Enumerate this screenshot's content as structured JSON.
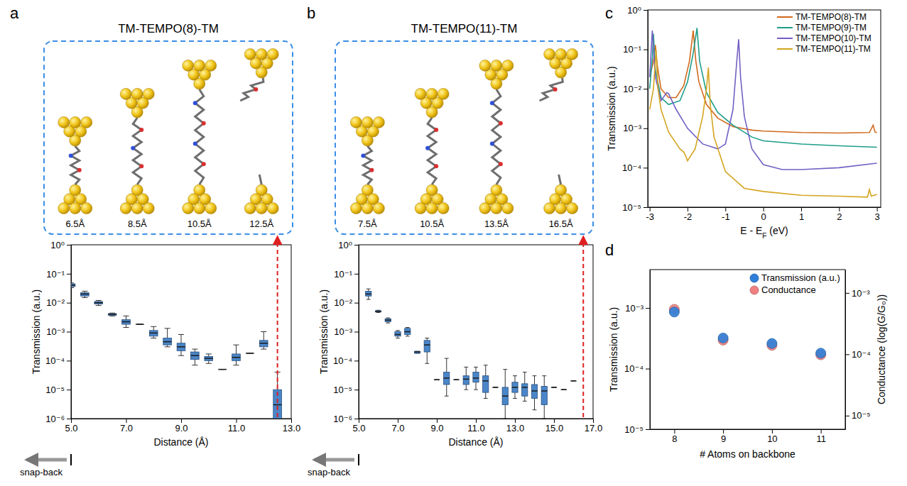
{
  "chart_data": [
    {
      "panel": "a",
      "type": "box",
      "title": "TM-TEMPO(8)-TM",
      "structure_labels": [
        "6.5Å",
        "8.5Å",
        "10.5Å",
        "12.5Å"
      ],
      "x_label": "Distance (Å)",
      "y_label": "Transmission (a.u.)",
      "log": "y",
      "color": "#4a86c8",
      "x": [
        5,
        5.5,
        6,
        6.5,
        7,
        7.5,
        8,
        8.5,
        9,
        9.5,
        10,
        10.5,
        11,
        11.5,
        12,
        12.5
      ],
      "whisker_low": [
        0.033,
        0.015,
        0.008,
        0.0035,
        0.0014,
        0.0018,
        0.0006,
        0.0003,
        0.00015,
        7e-05,
        8e-05,
        5e-05,
        7e-05,
        0.00018,
        0.00025,
        1e-06
      ],
      "q1": [
        0.036,
        0.017,
        0.009,
        0.0037,
        0.0018,
        0.0018,
        0.0007,
        0.00035,
        0.00022,
        0.00011,
        0.0001,
        5e-05,
        0.0001,
        0.00018,
        0.0003,
        1e-06
      ],
      "median": [
        0.04,
        0.02,
        0.01,
        0.004,
        0.0022,
        0.0018,
        0.0009,
        0.00045,
        0.0003,
        0.00015,
        0.00012,
        5e-05,
        0.00013,
        0.00018,
        0.0004,
        3e-06
      ],
      "q3": [
        0.045,
        0.022,
        0.011,
        0.0042,
        0.0026,
        0.0018,
        0.0011,
        0.0006,
        0.0004,
        0.0002,
        0.00014,
        5e-05,
        0.00017,
        0.00018,
        0.0005,
        1e-05
      ],
      "whisker_high": [
        0.048,
        0.025,
        0.012,
        0.0044,
        0.0035,
        0.0018,
        0.0015,
        0.0013,
        0.0008,
        0.00025,
        0.00017,
        5e-05,
        0.00035,
        0.00018,
        0.001,
        4e-05
      ],
      "rupture_x": 12.5,
      "annotation": "snap-back",
      "xlim": [
        5,
        13
      ],
      "xticks": [
        {
          "value": 5,
          "label": "5.0"
        },
        {
          "value": 7,
          "label": "7.0"
        },
        {
          "value": 9,
          "label": "9.0"
        },
        {
          "value": 11,
          "label": "11.0"
        },
        {
          "value": 13,
          "label": "13.0"
        }
      ],
      "ylim": [
        1e-06,
        1
      ],
      "yticks": [
        {
          "value": 1e-06,
          "label": "10⁻⁶"
        },
        {
          "value": 1e-05,
          "label": "10⁻⁵"
        },
        {
          "value": 0.0001,
          "label": "10⁻⁴"
        },
        {
          "value": 0.001,
          "label": "10⁻³"
        },
        {
          "value": 0.01,
          "label": "10⁻²"
        },
        {
          "value": 0.1,
          "label": "10⁻¹"
        },
        {
          "value": 1,
          "label": "10⁰"
        }
      ]
    },
    {
      "panel": "b",
      "type": "box",
      "title": "TM-TEMPO(11)-TM",
      "structure_labels": [
        "7.5Å",
        "10.5Å",
        "13.5Å",
        "16.5Å"
      ],
      "x_label": "Distance (Å)",
      "y_label": "Transmission (a.u.)",
      "log": "y",
      "color": "#4a86c8",
      "x": [
        5.5,
        6,
        6.5,
        7,
        7.5,
        8,
        8.5,
        9,
        9.5,
        10,
        10.5,
        11,
        11.5,
        12,
        12.5,
        13,
        13.5,
        14,
        14.5,
        15,
        15.5,
        16
      ],
      "whisker_low": [
        0.013,
        0.0046,
        0.002,
        0.0006,
        0.0007,
        0.00018,
        8e-05,
        2.2e-05,
        6e-06,
        2.2e-05,
        1e-05,
        1e-05,
        5e-06,
        1.2e-05,
        1e-06,
        5e-06,
        4e-06,
        2e-06,
        1e-06,
        1.2e-05,
        1e-05,
        2e-05
      ],
      "q1": [
        0.017,
        0.0048,
        0.0022,
        0.0007,
        0.0008,
        0.00018,
        0.0002,
        2.2e-05,
        1.5e-05,
        2.2e-05,
        1.5e-05,
        1.8e-05,
        8e-06,
        1.2e-05,
        3e-06,
        8e-06,
        6e-06,
        5e-06,
        3e-06,
        1.2e-05,
        1e-05,
        2e-05
      ],
      "median": [
        0.02,
        0.005,
        0.0025,
        0.0008,
        0.001,
        0.0002,
        0.00035,
        2.2e-05,
        2.5e-05,
        2.2e-05,
        2.3e-05,
        2.5e-05,
        2e-05,
        1.2e-05,
        6e-06,
        1.2e-05,
        1.2e-05,
        9e-06,
        9e-06,
        1.2e-05,
        1e-05,
        2e-05
      ],
      "q3": [
        0.025,
        0.0053,
        0.0028,
        0.001,
        0.0013,
        0.00021,
        0.0005,
        2.2e-05,
        4e-05,
        2.2e-05,
        3e-05,
        4e-05,
        3e-05,
        1.2e-05,
        1.2e-05,
        1.8e-05,
        1.6e-05,
        1.5e-05,
        1.3e-05,
        1.2e-05,
        1e-05,
        2e-05
      ],
      "whisker_high": [
        0.03,
        0.0055,
        0.003,
        0.0011,
        0.0014,
        0.00021,
        0.0006,
        2.2e-05,
        0.00012,
        2.2e-05,
        6e-05,
        6e-05,
        7e-05,
        1.2e-05,
        5e-05,
        3e-05,
        4e-05,
        3e-05,
        3e-05,
        1.2e-05,
        1e-05,
        2e-05
      ],
      "rupture_x": 16.5,
      "annotation": "snap-back",
      "xlim": [
        5,
        17
      ],
      "xticks": [
        {
          "value": 5,
          "label": "5.0"
        },
        {
          "value": 7,
          "label": "7.0"
        },
        {
          "value": 9,
          "label": "9.0"
        },
        {
          "value": 11,
          "label": "11.0"
        },
        {
          "value": 13,
          "label": "13.0"
        },
        {
          "value": 15,
          "label": "15.0"
        },
        {
          "value": 17,
          "label": "17.0"
        }
      ],
      "ylim": [
        1e-06,
        1
      ],
      "yticks": [
        {
          "value": 1e-06,
          "label": "10⁻⁶"
        },
        {
          "value": 1e-05,
          "label": "10⁻⁵"
        },
        {
          "value": 0.0001,
          "label": "10⁻⁴"
        },
        {
          "value": 0.001,
          "label": "10⁻³"
        },
        {
          "value": 0.01,
          "label": "10⁻²"
        },
        {
          "value": 0.1,
          "label": "10⁻¹"
        },
        {
          "value": 1,
          "label": "10⁰"
        }
      ]
    },
    {
      "panel": "c",
      "type": "line",
      "log": "y",
      "legend": "upper right",
      "x_label": {
        "text": "E - E",
        "subscript": "F",
        "after": " (eV)"
      },
      "y_label": "Transmission (a.u.)",
      "xlim": [
        -3.05,
        3.1
      ],
      "xticks": [
        -3,
        -2,
        -1,
        0,
        1,
        2,
        3
      ],
      "ylim": [
        1e-05,
        1
      ],
      "yticks": [
        {
          "value": 1e-05,
          "label": "10⁻⁵"
        },
        {
          "value": 0.0001,
          "label": "10⁻⁴"
        },
        {
          "value": 0.001,
          "label": "10⁻³"
        },
        {
          "value": 0.01,
          "label": "10⁻²"
        },
        {
          "value": 0.1,
          "label": "10⁻¹"
        },
        {
          "value": 1,
          "label": "10⁰"
        }
      ],
      "series": [
        {
          "name": "TM-TEMPO(8)-TM",
          "color": "#d2691e",
          "x": [
            -3,
            -2.9,
            -2.85,
            -2.8,
            -2.7,
            -2.5,
            -2.3,
            -2.1,
            -1.95,
            -1.85,
            -1.78,
            -1.7,
            -1.5,
            -1.2,
            -0.8,
            -0.3,
            0,
            1,
            2,
            2.8,
            2.9,
            2.95,
            3
          ],
          "values": [
            0.02,
            0.05,
            0.13,
            0.04,
            0.01,
            0.006,
            0.006,
            0.012,
            0.05,
            0.3,
            0.05,
            0.015,
            0.004,
            0.0018,
            0.0011,
            0.0009,
            0.00085,
            0.00078,
            0.00076,
            0.00078,
            0.0012,
            0.0008,
            0.00078
          ]
        },
        {
          "name": "TM-TEMPO(9)-TM",
          "color": "#1f9e89",
          "x": [
            -3,
            -2.93,
            -2.9,
            -2.85,
            -2.7,
            -2.5,
            -2.2,
            -2,
            -1.85,
            -1.75,
            -1.68,
            -1.5,
            -1.2,
            -0.8,
            -0.3,
            0,
            1,
            2,
            3
          ],
          "values": [
            0.01,
            0.06,
            0.25,
            0.03,
            0.006,
            0.004,
            0.005,
            0.015,
            0.08,
            0.35,
            0.05,
            0.008,
            0.0025,
            0.0012,
            0.0006,
            0.00048,
            0.0004,
            0.00036,
            0.00033
          ]
        },
        {
          "name": "TM-TEMPO(10)-TM",
          "color": "#7460c4",
          "x": [
            -3,
            -2.93,
            -2.85,
            -2.7,
            -2.55,
            -2.5,
            -2.3,
            -2,
            -1.6,
            -1.2,
            -1,
            -0.8,
            -0.7,
            -0.65,
            -0.6,
            -0.5,
            -0.3,
            0,
            0.5,
            1,
            2,
            3
          ],
          "values": [
            0.02,
            0.3,
            0.02,
            0.005,
            0.008,
            0.0075,
            0.003,
            0.001,
            0.0004,
            0.0003,
            0.0004,
            0.003,
            0.05,
            0.18,
            0.02,
            0.002,
            0.0003,
            0.00012,
            9e-05,
            9e-05,
            0.0001,
            0.00013
          ]
        },
        {
          "name": "TM-TEMPO(11)-TM",
          "color": "#d4a520",
          "x": [
            -3,
            -2.9,
            -2.83,
            -2.78,
            -2.7,
            -2.5,
            -2.2,
            -2.1,
            -2.05,
            -2,
            -1.8,
            -1.6,
            -1.5,
            -1.45,
            -1.4,
            -1.3,
            -1,
            -0.5,
            0,
            1,
            2,
            2.75,
            2.8,
            2.85,
            3
          ],
          "values": [
            0.003,
            0.01,
            0.1,
            0.01,
            0.003,
            0.0008,
            0.0003,
            0.00025,
            0.0002,
            0.00015,
            0.0003,
            0.002,
            0.01,
            0.035,
            0.004,
            0.0006,
            8e-05,
            3e-05,
            2.5e-05,
            2e-05,
            1.9e-05,
            1.8e-05,
            2.8e-05,
            1.9e-05,
            2.1e-05
          ]
        }
      ]
    },
    {
      "panel": "d",
      "type": "scatter",
      "log": "y",
      "legend": "upper right",
      "x_label": "# Atoms on backbone",
      "y_label": "Transmission (a.u.)",
      "y2_label": "Conductance (log(G/G₀))",
      "x": [
        8,
        9,
        10,
        11
      ],
      "xlim": [
        7.5,
        11.5
      ],
      "xticks": [
        8,
        9,
        10,
        11
      ],
      "ylim": [
        1e-05,
        0.0043
      ],
      "yticks": [
        {
          "value": 1e-05,
          "label": "10⁻⁵"
        },
        {
          "value": 0.0001,
          "label": "10⁻⁴"
        },
        {
          "value": 0.001,
          "label": "10⁻³"
        }
      ],
      "y2lim": [
        6e-06,
        0.0024
      ],
      "y2ticks": [
        {
          "value": 1e-05,
          "label": "10⁻⁵"
        },
        {
          "value": 0.0001,
          "label": "10⁻⁴"
        },
        {
          "value": 0.001,
          "label": "10⁻³"
        }
      ],
      "series": [
        {
          "name": "Conductance",
          "color": "#f08080",
          "axis": "y2",
          "marker": "circle",
          "values": [
            0.00054,
            0.00017,
            0.00014,
            9.8e-05
          ]
        },
        {
          "name": "Transmission (a.u.)",
          "color": "#2f7fd8",
          "marker": "circle",
          "values": [
            0.00086,
            0.00032,
            0.00026,
            0.00018
          ]
        }
      ]
    }
  ]
}
